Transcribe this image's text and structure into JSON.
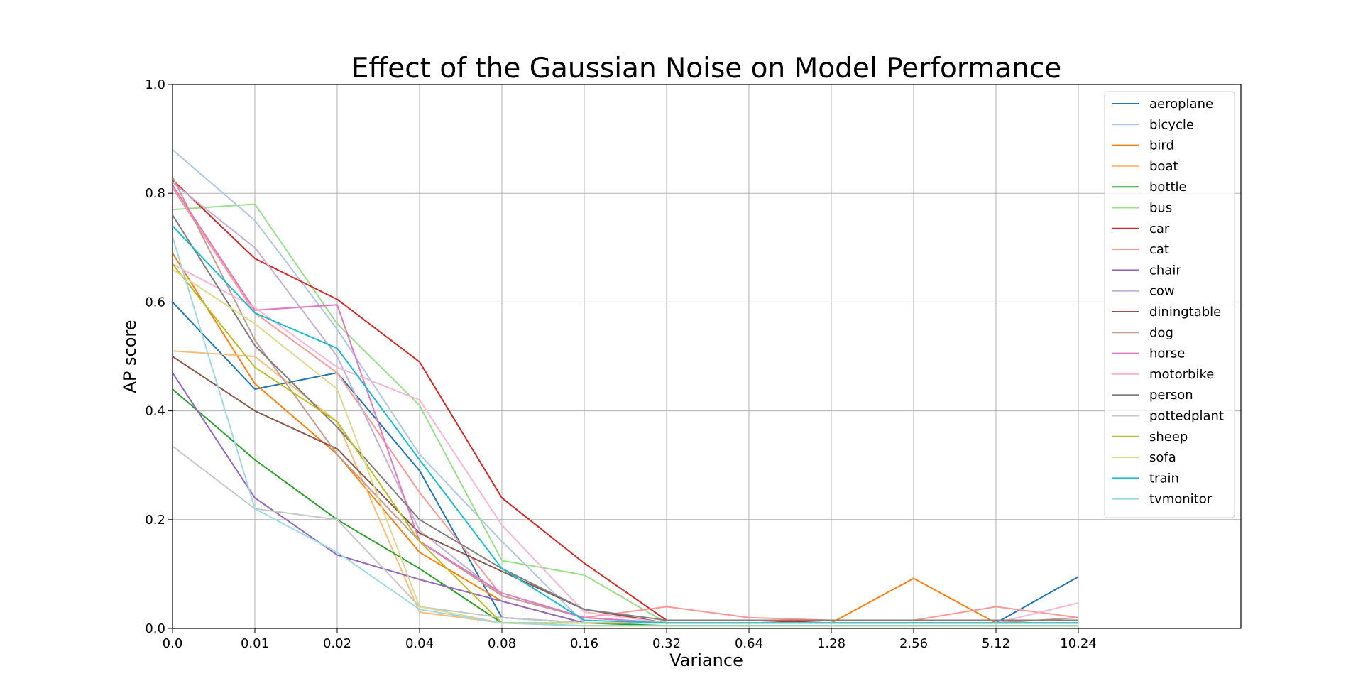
{
  "chart_data": {
    "type": "line",
    "title": "Effect of the Gaussian Noise on Model Performance",
    "xlabel": "Variance",
    "ylabel": "AP score",
    "ylim": [
      0.0,
      1.0
    ],
    "yticks": [
      "0.0",
      "0.2",
      "0.4",
      "0.6",
      "0.8",
      "1.0"
    ],
    "categories": [
      "0.0",
      "0.01",
      "0.02",
      "0.04",
      "0.08",
      "0.16",
      "0.32",
      "0.64",
      "1.28",
      "2.56",
      "5.12",
      "10.24"
    ],
    "grid": true,
    "legend_position": "top-right",
    "series": [
      {
        "name": "aeroplane",
        "color": "#1f77b4",
        "values": [
          0.6,
          0.44,
          0.47,
          0.29,
          0.02,
          0.01,
          0.01,
          0.01,
          0.01,
          0.01,
          0.01,
          0.095
        ]
      },
      {
        "name": "bicycle",
        "color": "#aec7e8",
        "values": [
          0.88,
          0.75,
          0.55,
          0.32,
          0.16,
          0.01,
          0.01,
          0.01,
          0.01,
          0.01,
          0.01,
          0.01
        ]
      },
      {
        "name": "bird",
        "color": "#ff7f0e",
        "values": [
          0.69,
          0.45,
          0.32,
          0.14,
          0.05,
          0.01,
          0.01,
          0.01,
          0.01,
          0.092,
          0.01,
          0.01
        ]
      },
      {
        "name": "boat",
        "color": "#ffbb78",
        "values": [
          0.51,
          0.5,
          0.38,
          0.03,
          0.01,
          0.01,
          0.01,
          0.01,
          0.01,
          0.01,
          0.01,
          0.01
        ]
      },
      {
        "name": "bottle",
        "color": "#2ca02c",
        "values": [
          0.44,
          0.31,
          0.2,
          0.11,
          0.01,
          0.01,
          0.005,
          0.005,
          0.005,
          0.005,
          0.005,
          0.005
        ]
      },
      {
        "name": "bus",
        "color": "#98df8a",
        "values": [
          0.77,
          0.78,
          0.56,
          0.41,
          0.125,
          0.098,
          0.01,
          0.01,
          0.01,
          0.01,
          0.01,
          0.01
        ]
      },
      {
        "name": "car",
        "color": "#d62728",
        "values": [
          0.825,
          0.68,
          0.605,
          0.49,
          0.24,
          0.12,
          0.015,
          0.015,
          0.01,
          0.01,
          0.01,
          0.01
        ]
      },
      {
        "name": "cat",
        "color": "#ff9896",
        "values": [
          0.81,
          0.58,
          0.47,
          0.25,
          0.06,
          0.02,
          0.04,
          0.02,
          0.015,
          0.015,
          0.04,
          0.02
        ]
      },
      {
        "name": "chair",
        "color": "#9467bd",
        "values": [
          0.47,
          0.24,
          0.135,
          0.09,
          0.05,
          0.01,
          0.01,
          0.01,
          0.01,
          0.01,
          0.01,
          0.01
        ]
      },
      {
        "name": "cow",
        "color": "#c5b0d5",
        "values": [
          0.82,
          0.7,
          0.5,
          0.18,
          0.06,
          0.02,
          0.01,
          0.01,
          0.01,
          0.01,
          0.01,
          0.01
        ]
      },
      {
        "name": "diningtable",
        "color": "#8c564b",
        "values": [
          0.5,
          0.4,
          0.33,
          0.175,
          0.105,
          0.035,
          0.01,
          0.01,
          0.01,
          0.01,
          0.01,
          0.01
        ]
      },
      {
        "name": "dog",
        "color": "#c49c94",
        "values": [
          0.83,
          0.53,
          0.32,
          0.16,
          0.06,
          0.02,
          0.01,
          0.01,
          0.01,
          0.01,
          0.01,
          0.02
        ]
      },
      {
        "name": "horse",
        "color": "#e377c2",
        "values": [
          0.815,
          0.585,
          0.595,
          0.16,
          0.065,
          0.02,
          0.01,
          0.01,
          0.01,
          0.01,
          0.01,
          0.01
        ]
      },
      {
        "name": "motorbike",
        "color": "#f7b6d2",
        "values": [
          0.67,
          0.59,
          0.48,
          0.42,
          0.19,
          0.03,
          0.01,
          0.01,
          0.01,
          0.01,
          0.01,
          0.047
        ]
      },
      {
        "name": "person",
        "color": "#7f7f7f",
        "values": [
          0.76,
          0.52,
          0.37,
          0.2,
          0.11,
          0.035,
          0.015,
          0.015,
          0.015,
          0.015,
          0.015,
          0.015
        ]
      },
      {
        "name": "pottedplant",
        "color": "#c7c7c7",
        "values": [
          0.335,
          0.22,
          0.2,
          0.04,
          0.02,
          0.01,
          0.01,
          0.01,
          0.01,
          0.01,
          0.01,
          0.01
        ]
      },
      {
        "name": "sheep",
        "color": "#bcbd22",
        "values": [
          0.67,
          0.48,
          0.38,
          0.16,
          0.01,
          0.005,
          0.005,
          0.005,
          0.005,
          0.005,
          0.005,
          0.005
        ]
      },
      {
        "name": "sofa",
        "color": "#dbdb8d",
        "values": [
          0.66,
          0.56,
          0.44,
          0.04,
          0.01,
          0.01,
          0.01,
          0.01,
          0.01,
          0.01,
          0.01,
          0.01
        ]
      },
      {
        "name": "train",
        "color": "#17becf",
        "values": [
          0.74,
          0.58,
          0.515,
          0.31,
          0.11,
          0.015,
          0.01,
          0.01,
          0.01,
          0.01,
          0.01,
          0.01
        ]
      },
      {
        "name": "tvmonitor",
        "color": "#9edae5",
        "values": [
          0.72,
          0.22,
          0.14,
          0.035,
          0.01,
          0.005,
          0.005,
          0.005,
          0.005,
          0.005,
          0.005,
          0.005
        ]
      }
    ]
  }
}
